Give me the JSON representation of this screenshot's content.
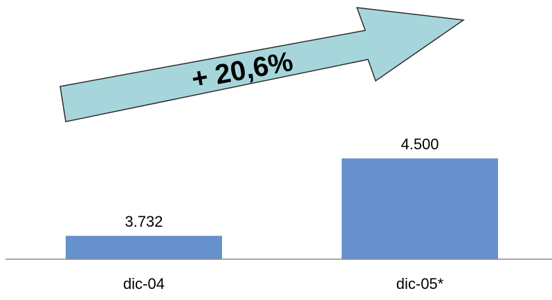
{
  "chart_data": {
    "type": "bar",
    "categories": [
      "dic-04",
      "dic-05*"
    ],
    "values": [
      3732,
      4500
    ],
    "value_labels": [
      "3.732",
      "4.500"
    ],
    "bar_color": "#6691CC",
    "axis_color": "#888888",
    "ylim": [
      3500,
      4700
    ],
    "grid": false,
    "legend": "none",
    "annotation": {
      "text": "+ 20,6%",
      "fill": "#A6D6DC",
      "stroke": "#2B2B2B"
    }
  }
}
